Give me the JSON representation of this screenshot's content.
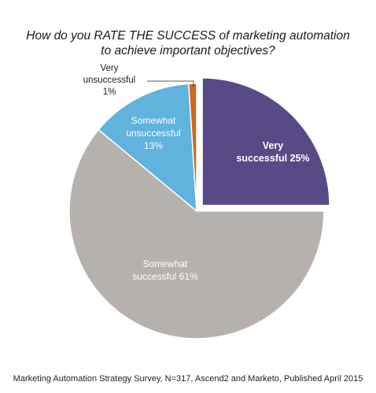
{
  "chart_data": {
    "type": "pie",
    "title_lines": [
      "How do you RATE THE SUCCESS of marketing automation",
      "to achieve important objectives?"
    ],
    "slices": [
      {
        "label": "Very successful",
        "value": 25,
        "display": "25%",
        "color": "#574a86",
        "exploded": true
      },
      {
        "label": "Somewhat successful",
        "value": 61,
        "display": "61%",
        "color": "#b6b1ad",
        "exploded": false
      },
      {
        "label": "Somewhat unsuccessful",
        "value": 13,
        "display": "13%",
        "color": "#5fb3dc",
        "exploded": false
      },
      {
        "label": "Very unsuccessful",
        "value": 1,
        "display": "1%",
        "color": "#d0671c",
        "exploded": false
      }
    ],
    "source": "Marketing Automation Strategy Survey, N=317, Ascend2 and Marketo, Published April 2015"
  },
  "labels": {
    "very_successful": [
      "Very",
      "successful 25%"
    ],
    "somewhat_successful": [
      "Somewhat",
      "successful 61%"
    ],
    "somewhat_unsuccessful": [
      "Somewhat",
      "unsuccessful",
      "13%"
    ],
    "very_unsuccessful": [
      "Very",
      "unsuccessful",
      "1%"
    ]
  }
}
